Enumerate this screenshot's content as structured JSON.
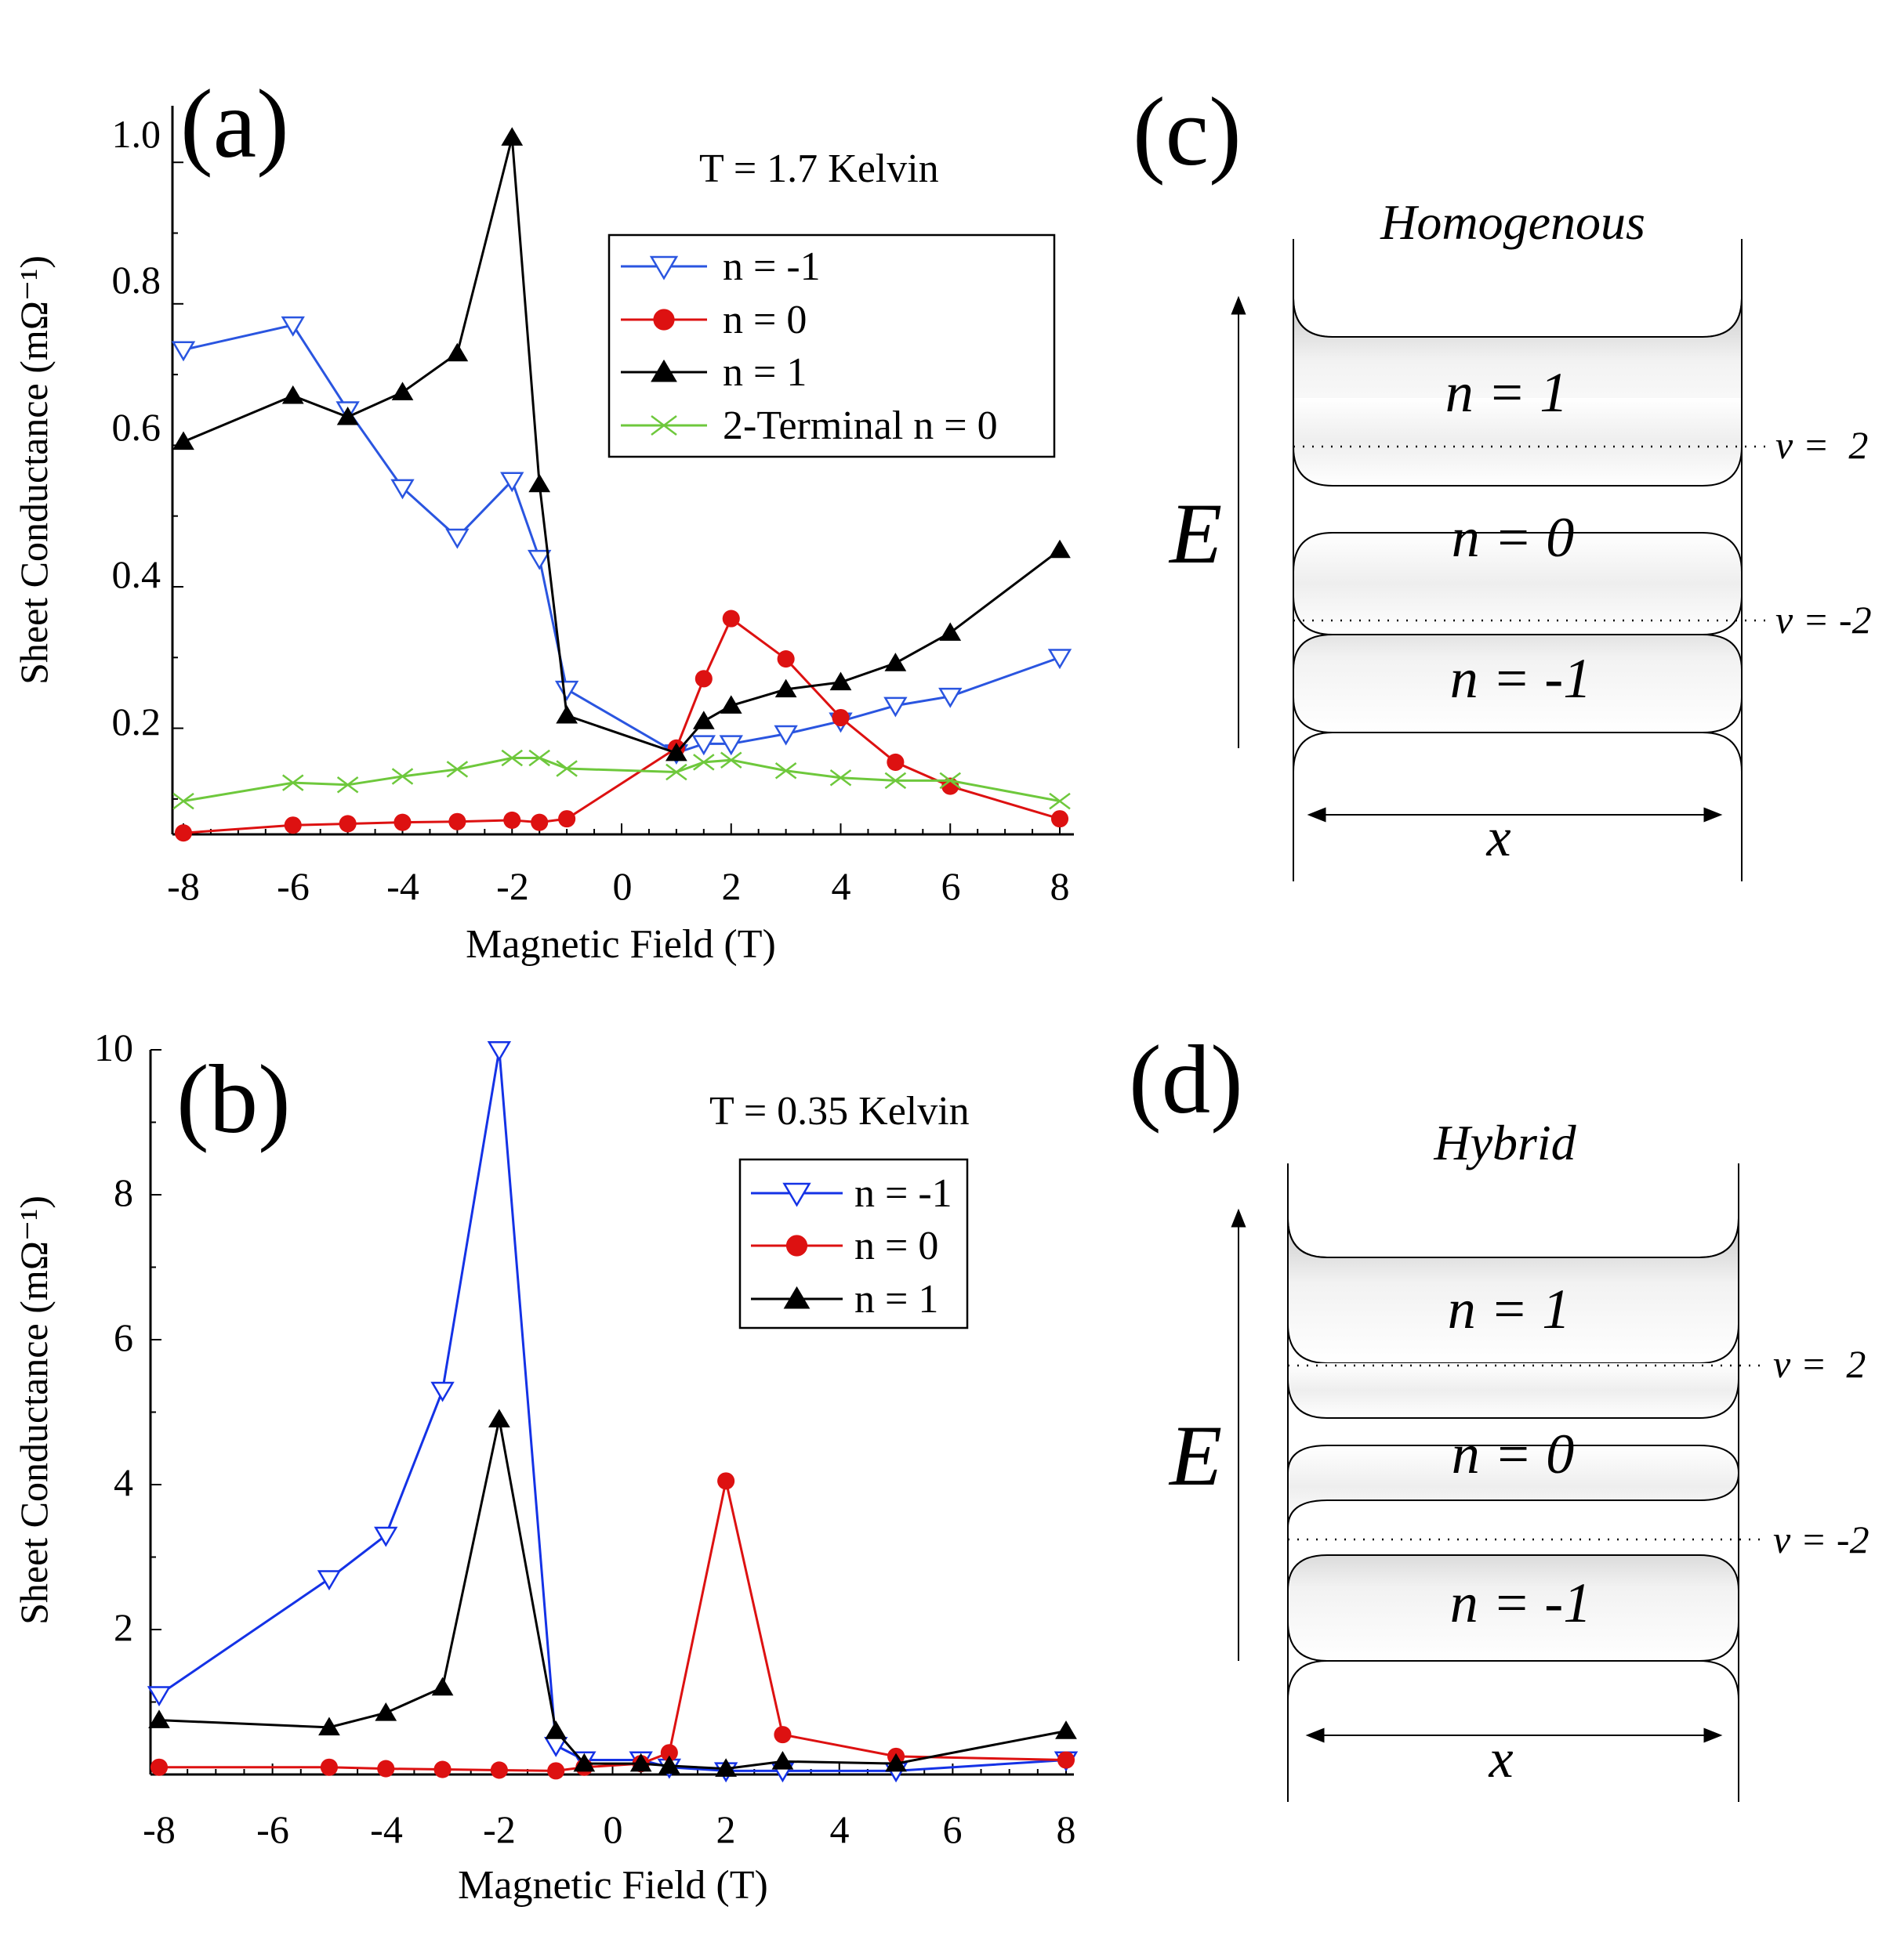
{
  "chart_data": [
    {
      "panel": "(a)",
      "type": "line",
      "annotation": "T = 1.7 Kelvin",
      "xlabel": "Magnetic Field (T)",
      "ylabel": "Sheet Conductance (mΩ⁻¹)",
      "xlim": [
        -8,
        8
      ],
      "ylim": [
        0.05,
        1.08
      ],
      "xticks": [
        "-8",
        "-6",
        "-4",
        "-2",
        "0",
        "2",
        "4",
        "6",
        "8"
      ],
      "yticks": [
        "0.2",
        "0.4",
        "0.6",
        "0.8",
        "1.0"
      ],
      "legend_position": "top-right",
      "series": [
        {
          "name": "n = -1",
          "color": "#2a55e0",
          "marker": "triangle-down-open",
          "x": [
            -8,
            -6,
            -5,
            -4,
            -3,
            -2,
            -1.5,
            -1,
            1,
            1.5,
            2,
            3,
            4,
            5,
            6,
            8
          ],
          "y": [
            0.735,
            0.77,
            0.65,
            0.54,
            0.47,
            0.55,
            0.44,
            0.255,
            0.165,
            0.178,
            0.178,
            0.192,
            0.21,
            0.232,
            0.245,
            0.3
          ]
        },
        {
          "name": "n = 0",
          "color": "#dd1111",
          "marker": "circle-filled",
          "x": [
            -8,
            -6,
            -5,
            -4,
            -3,
            -2,
            -1.5,
            -1,
            1,
            1.5,
            2,
            3,
            4,
            5,
            6,
            8
          ],
          "y": [
            0.052,
            0.063,
            0.065,
            0.067,
            0.068,
            0.07,
            0.067,
            0.072,
            0.172,
            0.27,
            0.355,
            0.298,
            0.215,
            0.152,
            0.118,
            0.072
          ]
        },
        {
          "name": "n = 1",
          "color": "#000000",
          "marker": "triangle-up-filled",
          "x": [
            -8,
            -6,
            -5,
            -4,
            -3,
            -2,
            -1.5,
            -1,
            1,
            1.5,
            2,
            3,
            4,
            5,
            6,
            8
          ],
          "y": [
            0.605,
            0.67,
            0.64,
            0.675,
            0.73,
            1.035,
            0.545,
            0.218,
            0.165,
            0.21,
            0.232,
            0.255,
            0.265,
            0.292,
            0.335,
            0.452
          ]
        },
        {
          "name": "2-Terminal n = 0",
          "color": "#6ec83c",
          "marker": "x",
          "x": [
            -8,
            -6,
            -5,
            -4,
            -3,
            -2,
            -1.5,
            -1,
            1,
            1.5,
            2,
            3,
            4,
            5,
            6,
            8
          ],
          "y": [
            0.097,
            0.123,
            0.12,
            0.132,
            0.142,
            0.158,
            0.158,
            0.143,
            0.138,
            0.152,
            0.155,
            0.14,
            0.13,
            0.126,
            0.126,
            0.097
          ]
        }
      ]
    },
    {
      "panel": "(b)",
      "type": "line",
      "annotation": "T = 0.35 Kelvin",
      "xlabel": "Magnetic Field (T)",
      "ylabel": "Sheet Conductance (mΩ⁻¹)",
      "xlim": [
        -8,
        8
      ],
      "ylim": [
        0,
        10
      ],
      "xticks": [
        "-8",
        "-6",
        "-4",
        "-2",
        "0",
        "2",
        "4",
        "6",
        "8"
      ],
      "yticks": [
        "2",
        "4",
        "6",
        "8",
        "10"
      ],
      "legend_position": "top-right",
      "series": [
        {
          "name": "n = -1",
          "color": "#1432e6",
          "marker": "triangle-down-open",
          "x": [
            -8,
            -5,
            -4,
            -3,
            -2,
            -1,
            -0.5,
            0.5,
            1,
            2,
            3,
            5,
            8
          ],
          "y": [
            1.1,
            2.7,
            3.3,
            5.3,
            10.0,
            0.4,
            0.2,
            0.2,
            0.1,
            0.05,
            0.05,
            0.05,
            0.2
          ]
        },
        {
          "name": "n = 0",
          "color": "#dd1111",
          "marker": "circle-filled",
          "x": [
            -8,
            -5,
            -4,
            -3,
            -2,
            -1,
            -0.5,
            0.5,
            1,
            2,
            3,
            5,
            8
          ],
          "y": [
            0.1,
            0.1,
            0.08,
            0.07,
            0.06,
            0.05,
            0.1,
            0.15,
            0.3,
            4.05,
            0.55,
            0.25,
            0.2
          ]
        },
        {
          "name": "n = 1",
          "color": "#000000",
          "marker": "triangle-up-filled",
          "x": [
            -8,
            -5,
            -4,
            -3,
            -2,
            -1,
            -0.5,
            0.5,
            1,
            2,
            3,
            5,
            8
          ],
          "y": [
            0.75,
            0.65,
            0.85,
            1.2,
            4.9,
            0.6,
            0.15,
            0.15,
            0.12,
            0.08,
            0.18,
            0.15,
            0.6
          ]
        }
      ]
    }
  ],
  "diagrams": [
    {
      "panel": "(c)",
      "title": "Homogenous",
      "axis_label": "E",
      "x_label": "x",
      "bands": [
        "n = 1",
        "n = 0",
        "n = -1"
      ],
      "fillings": [
        "v =  2",
        "v = -2"
      ]
    },
    {
      "panel": "(d)",
      "title": "Hybrid",
      "axis_label": "E",
      "x_label": "x",
      "bands": [
        "n = 1",
        "n = 0",
        "n = -1"
      ],
      "fillings": [
        "v =  2",
        "v = -2"
      ]
    }
  ]
}
